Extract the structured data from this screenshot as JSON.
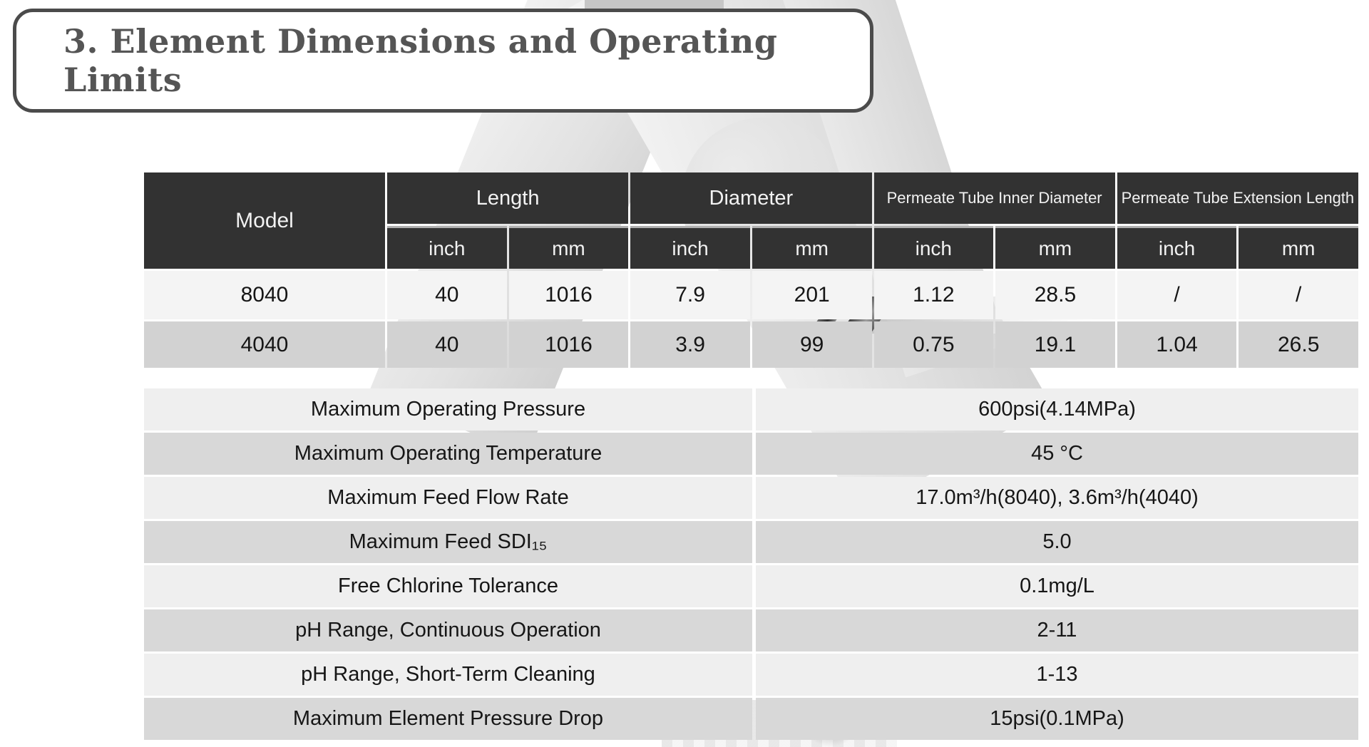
{
  "title": "3. Element Dimensions and Operating Limits",
  "colors": {
    "header_bg": "#323232",
    "header_text": "#f2f2f2",
    "row_light": "#f4f4f4",
    "row_dark": "#d2d2d2",
    "limits_row_light": "#efefef",
    "limits_row_dark": "#d8d8d8",
    "title_text": "#555555",
    "title_border": "#4b4b4b"
  },
  "dimensions_table": {
    "model_header": "Model",
    "groups": [
      "Length",
      "Diameter",
      "Permeate Tube Inner Diameter",
      "Permeate Tube Extension Length"
    ],
    "units": [
      "inch",
      "mm",
      "inch",
      "mm",
      "inch",
      "mm",
      "inch",
      "mm"
    ],
    "rows": [
      {
        "model": "8040",
        "values": [
          "40",
          "1016",
          "7.9",
          "201",
          "1.12",
          "28.5",
          "/",
          "/"
        ]
      },
      {
        "model": "4040",
        "values": [
          "40",
          "1016",
          "3.9",
          "99",
          "0.75",
          "19.1",
          "1.04",
          "26.5"
        ]
      }
    ]
  },
  "limits_table": {
    "rows": [
      {
        "label": "Maximum Operating Pressure",
        "value": "600psi(4.14MPa)"
      },
      {
        "label": "Maximum Operating Temperature",
        "value": "45 °C"
      },
      {
        "label": "Maximum Feed Flow Rate",
        "value": "17.0m³/h(8040), 3.6m³/h(4040)"
      },
      {
        "label": "Maximum Feed SDI₁₅",
        "value": "5.0"
      },
      {
        "label": "Free Chlorine Tolerance",
        "value": "0.1mg/L"
      },
      {
        "label": "pH Range, Continuous Operation",
        "value": "2-11"
      },
      {
        "label": "pH Range, Short-Term Cleaning",
        "value": "1-13"
      },
      {
        "label": "Maximum Element Pressure Drop",
        "value": "15psi(0.1MPa)"
      }
    ]
  }
}
